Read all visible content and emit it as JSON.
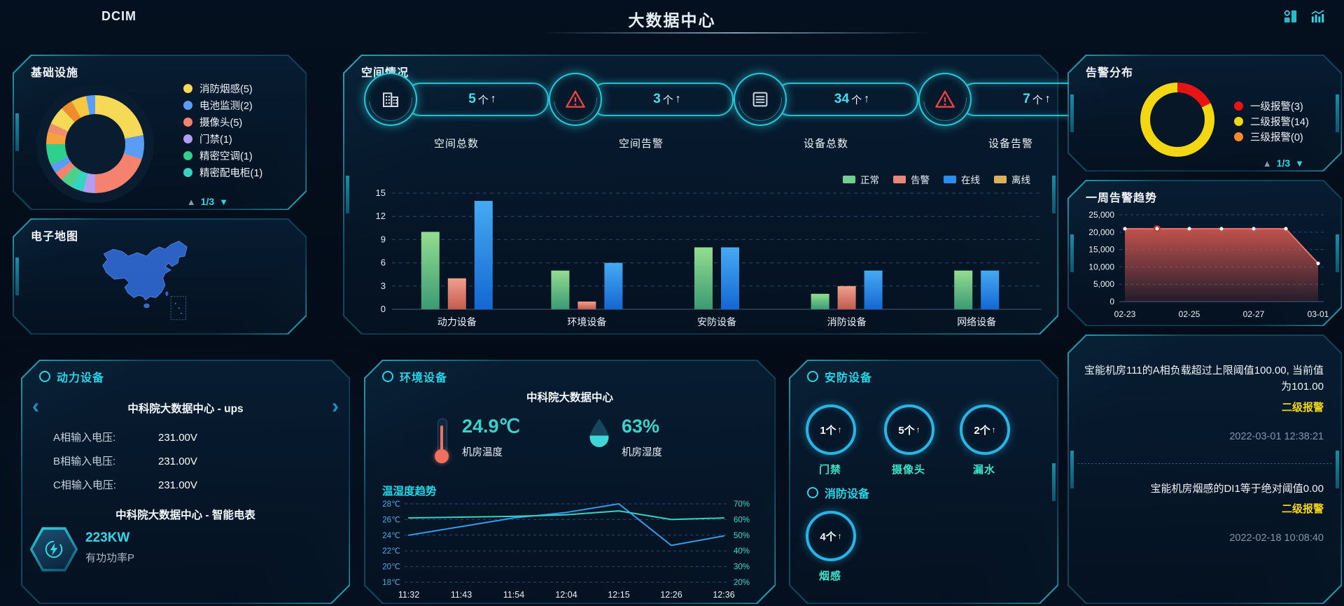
{
  "header": {
    "brand": "DCIM",
    "title": "大数据中心"
  },
  "misc": {
    "up_arrow": "↑",
    "page_up": "▲",
    "page_down": "▼",
    "prev": "‹",
    "next": "›"
  },
  "colors": {
    "accent": "#2fd8e8",
    "alarm_red": "#e81414",
    "alarm_yellow": "#f2d712"
  },
  "infrastructure": {
    "title": "基础设施",
    "legend": [
      {
        "label": "消防烟感(5)",
        "color": "#f7d958"
      },
      {
        "label": "电池监测(2)",
        "color": "#5b9cf5"
      },
      {
        "label": "摄像头(5)",
        "color": "#f4826f"
      },
      {
        "label": "门禁(1)",
        "color": "#b39df2"
      },
      {
        "label": "精密空调(1)",
        "color": "#2fd08c"
      },
      {
        "label": "精密配电柜(1)",
        "color": "#35d3c0"
      }
    ],
    "pagination": "1/3"
  },
  "map": {
    "title": "电子地图"
  },
  "space": {
    "title": "空间情况",
    "stats": [
      {
        "value": "5",
        "unit": "个",
        "label": "空间总数",
        "icon": "building"
      },
      {
        "value": "3",
        "unit": "个",
        "label": "空间告警",
        "icon": "alert"
      },
      {
        "value": "34",
        "unit": "个",
        "label": "设备总数",
        "icon": "server"
      },
      {
        "value": "7",
        "unit": "个",
        "label": "设备告警",
        "icon": "alert"
      }
    ]
  },
  "alarm_distribution": {
    "title": "告警分布",
    "legend": [
      {
        "label": "一级报警(3)",
        "color": "#e81414"
      },
      {
        "label": "二级报警(14)",
        "color": "#f2d712"
      },
      {
        "label": "三级报警(0)",
        "color": "#f08c2e"
      }
    ],
    "pagination": "1/3"
  },
  "alarm_trend": {
    "title": "一周告警趋势"
  },
  "power": {
    "title": "动力设备",
    "device_primary": "中科院大数据中心 - ups",
    "metrics": [
      {
        "label": "A相输入电压:",
        "value": "231.00V"
      },
      {
        "label": "B相输入电压:",
        "value": "231.00V"
      },
      {
        "label": "C相输入电压:",
        "value": "231.00V"
      }
    ],
    "device_secondary": "中科院大数据中心 - 智能电表",
    "power_value": "223KW",
    "power_label": "有功功率P"
  },
  "environment": {
    "title": "环境设备",
    "site": "中科院大数据中心",
    "temperature": "24.9℃",
    "temperature_label": "机房温度",
    "humidity": "63%",
    "humidity_label": "机房湿度",
    "trend_title": "温湿度趋势"
  },
  "security": {
    "title": "安防设备",
    "items": [
      {
        "value": "1个",
        "label": "门禁"
      },
      {
        "value": "5个",
        "label": "摄像头"
      },
      {
        "value": "2个",
        "label": "漏水"
      }
    ]
  },
  "fire": {
    "title": "消防设备",
    "items": [
      {
        "value": "4个",
        "label": "烟感"
      }
    ]
  },
  "alarms": {
    "items": [
      {
        "message": "宝能机房111的A相负载超过上限阈值100.00, 当前值为101.00",
        "level": "二级报警",
        "time": "2022-03-01 12:38:21"
      },
      {
        "message": "宝能机房烟感的DI1等于绝对阈值0.00",
        "level": "二级报警",
        "time": "2022-02-18 10:08:40"
      }
    ]
  },
  "chart_data": [
    {
      "id": "infra_donut",
      "type": "pie",
      "title": "基础设施",
      "legend_position": "right",
      "categories": [
        "消防烟感",
        "电池监测",
        "摄像头",
        "门禁",
        "精密空调",
        "精密配电柜"
      ],
      "values": [
        5,
        2,
        5,
        1,
        1,
        1
      ],
      "colors": [
        "#f7d958",
        "#5b9cf5",
        "#f4826f",
        "#b39df2",
        "#2fd08c",
        "#35d3c0"
      ],
      "display_segments": [
        {
          "color": "#f7d958",
          "pct": 22
        },
        {
          "color": "#5b9cf5",
          "pct": 8
        },
        {
          "color": "#f4826f",
          "pct": 20
        },
        {
          "color": "#b39df2",
          "pct": 4
        },
        {
          "color": "#35d3c0",
          "pct": 4
        },
        {
          "color": "#4cd08a",
          "pct": 4
        },
        {
          "color": "#f4826f",
          "pct": 3
        },
        {
          "color": "#5b9cf5",
          "pct": 3
        },
        {
          "color": "#2fd08c",
          "pct": 7
        },
        {
          "color": "#f6a23c",
          "pct": 4
        },
        {
          "color": "#f08c6e",
          "pct": 3
        },
        {
          "color": "#f7d958",
          "pct": 6
        },
        {
          "color": "#f08c2e",
          "pct": 4
        },
        {
          "color": "#f5c842",
          "pct": 5
        },
        {
          "color": "#5b9cf5",
          "pct": 3
        }
      ]
    },
    {
      "id": "device_bars",
      "type": "bar",
      "categories": [
        "动力设备",
        "环境设备",
        "安防设备",
        "消防设备",
        "网络设备"
      ],
      "series": [
        {
          "name": "正常",
          "color": "#6fcf8e",
          "top": "#93dd90",
          "bottom": "#3c9a74",
          "values": [
            10,
            5,
            8,
            2,
            5
          ]
        },
        {
          "name": "告警",
          "color": "#e8867a",
          "top": "#f0a08e",
          "bottom": "#c25b4e",
          "values": [
            4,
            1,
            0,
            3,
            0
          ]
        },
        {
          "name": "在线",
          "color": "#2b8df0",
          "top": "#46aaf2",
          "bottom": "#1467d2",
          "values": [
            14,
            6,
            8,
            5,
            5
          ]
        },
        {
          "name": "离线",
          "color": "#d8b05e",
          "top": "#e4c77e",
          "bottom": "#bd9540",
          "values": [
            0,
            0,
            0,
            0,
            0
          ]
        }
      ],
      "ylim": [
        0,
        15
      ],
      "yticks": [
        0,
        3,
        6,
        9,
        12,
        15
      ],
      "grid": "dashed",
      "legend_position": "top-right"
    },
    {
      "id": "alarm_donut",
      "type": "pie",
      "categories": [
        "一级报警",
        "二级报警",
        "三级报警"
      ],
      "values": [
        3,
        14,
        0
      ],
      "colors": [
        "#e81414",
        "#f2d712",
        "#f08c2e"
      ]
    },
    {
      "id": "alarm_trend",
      "type": "area",
      "title": "一周告警趋势",
      "x": [
        "02-23",
        "02-24",
        "02-25",
        "02-26",
        "02-27",
        "02-28",
        "03-01"
      ],
      "xticks": [
        "02-23",
        "02-25",
        "02-27",
        "03-01"
      ],
      "values": [
        21000,
        21000,
        21000,
        21000,
        21000,
        21000,
        11000
      ],
      "ylim": [
        0,
        25000
      ],
      "yticks": [
        "25,000",
        "20,000",
        "15,000",
        "10,000",
        "5,000",
        "0"
      ],
      "color": "#d95f57",
      "highlight_index": 1
    },
    {
      "id": "env_trend",
      "type": "line",
      "title": "温湿度趋势",
      "x": [
        "11:32",
        "11:43",
        "11:54",
        "12:04",
        "12:15",
        "12:26",
        "12:36"
      ],
      "series": [
        {
          "name": "机房温度",
          "axis": "left",
          "color": "#2f9df0",
          "values": [
            24,
            25.1,
            26.2,
            26.9,
            28,
            22.7,
            23.9
          ]
        },
        {
          "name": "机房湿度",
          "axis": "right",
          "color": "#35d4c0",
          "values": [
            61,
            61.5,
            62,
            63,
            65.5,
            60,
            61
          ]
        }
      ],
      "left_axis": {
        "min": 18,
        "max": 28,
        "ticks": [
          "28℃",
          "26℃",
          "24℃",
          "22℃",
          "20℃",
          "18℃"
        ]
      },
      "right_axis": {
        "min": 20,
        "max": 70,
        "ticks": [
          "70%",
          "60%",
          "50%",
          "40%",
          "30%",
          "20%"
        ]
      }
    }
  ]
}
